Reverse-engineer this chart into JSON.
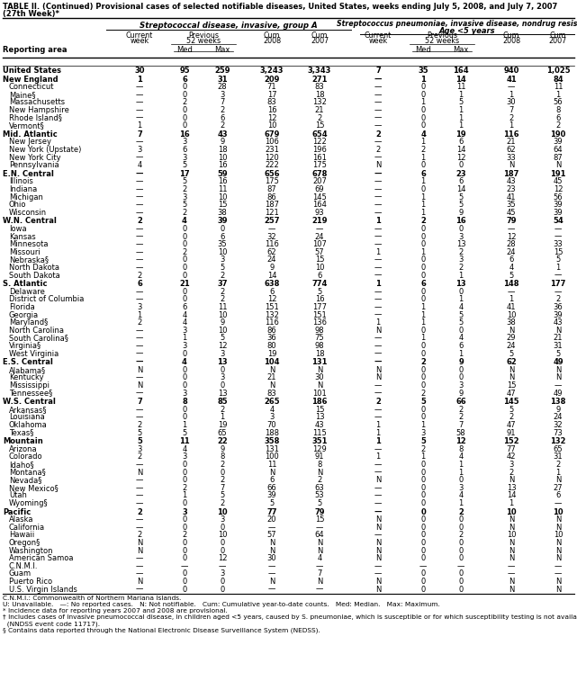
{
  "title_line1": "TABLE II. (Continued) Provisional cases of selected notifiable diseases, United States, weeks ending July 5, 2008, and July 7, 2007",
  "title_line2": "(27th Week)*",
  "col_group1": "Streptococcal disease, invasive, group A",
  "col_group2": "Streptococcus pneumoniae, invasive disease, nondrug resistant†",
  "col_group2_sub": "Age <5 years",
  "rows": [
    [
      "United States",
      "30",
      "95",
      "259",
      "3,243",
      "3,343",
      "7",
      "35",
      "164",
      "940",
      "1,025"
    ],
    [
      "New England",
      "1",
      "6",
      "31",
      "209",
      "271",
      "—",
      "1",
      "14",
      "41",
      "84"
    ],
    [
      "Connecticut",
      "—",
      "0",
      "28",
      "71",
      "83",
      "—",
      "0",
      "11",
      "—",
      "11"
    ],
    [
      "Maine§",
      "—",
      "0",
      "3",
      "17",
      "18",
      "—",
      "0",
      "1",
      "1",
      "1"
    ],
    [
      "Massachusetts",
      "—",
      "2",
      "7",
      "83",
      "132",
      "—",
      "1",
      "5",
      "30",
      "56"
    ],
    [
      "New Hampshire",
      "—",
      "0",
      "2",
      "16",
      "21",
      "—",
      "0",
      "1",
      "7",
      "8"
    ],
    [
      "Rhode Island§",
      "—",
      "0",
      "6",
      "12",
      "2",
      "—",
      "0",
      "1",
      "2",
      "6"
    ],
    [
      "Vermont§",
      "1",
      "0",
      "2",
      "10",
      "15",
      "—",
      "0",
      "1",
      "1",
      "2"
    ],
    [
      "Mid. Atlantic",
      "7",
      "16",
      "43",
      "679",
      "654",
      "2",
      "4",
      "19",
      "116",
      "190"
    ],
    [
      "New Jersey",
      "—",
      "3",
      "9",
      "106",
      "122",
      "—",
      "1",
      "6",
      "21",
      "39"
    ],
    [
      "New York (Upstate)",
      "3",
      "6",
      "18",
      "231",
      "196",
      "2",
      "2",
      "14",
      "62",
      "64"
    ],
    [
      "New York City",
      "—",
      "3",
      "10",
      "120",
      "161",
      "—",
      "1",
      "12",
      "33",
      "87"
    ],
    [
      "Pennsylvania",
      "4",
      "5",
      "16",
      "222",
      "175",
      "N",
      "0",
      "0",
      "N",
      "N"
    ],
    [
      "E.N. Central",
      "—",
      "17",
      "59",
      "656",
      "678",
      "—",
      "6",
      "23",
      "187",
      "191"
    ],
    [
      "Illinois",
      "—",
      "5",
      "16",
      "175",
      "207",
      "—",
      "1",
      "6",
      "43",
      "45"
    ],
    [
      "Indiana",
      "—",
      "2",
      "11",
      "87",
      "69",
      "—",
      "0",
      "14",
      "23",
      "12"
    ],
    [
      "Michigan",
      "—",
      "3",
      "10",
      "86",
      "145",
      "—",
      "1",
      "5",
      "41",
      "56"
    ],
    [
      "Ohio",
      "—",
      "5",
      "15",
      "187",
      "164",
      "—",
      "1",
      "5",
      "35",
      "39"
    ],
    [
      "Wisconsin",
      "—",
      "2",
      "38",
      "121",
      "93",
      "—",
      "1",
      "9",
      "45",
      "39"
    ],
    [
      "W.N. Central",
      "2",
      "4",
      "39",
      "257",
      "219",
      "1",
      "2",
      "16",
      "79",
      "54"
    ],
    [
      "Iowa",
      "—",
      "0",
      "0",
      "—",
      "—",
      "—",
      "0",
      "0",
      "—",
      "—"
    ],
    [
      "Kansas",
      "—",
      "0",
      "6",
      "32",
      "24",
      "—",
      "0",
      "3",
      "12",
      "—"
    ],
    [
      "Minnesota",
      "—",
      "0",
      "35",
      "116",
      "107",
      "—",
      "0",
      "13",
      "28",
      "33"
    ],
    [
      "Missouri",
      "—",
      "2",
      "10",
      "62",
      "57",
      "1",
      "1",
      "2",
      "24",
      "15"
    ],
    [
      "Nebraska§",
      "—",
      "0",
      "3",
      "24",
      "15",
      "—",
      "0",
      "3",
      "6",
      "5"
    ],
    [
      "North Dakota",
      "—",
      "0",
      "5",
      "9",
      "10",
      "—",
      "0",
      "2",
      "4",
      "1"
    ],
    [
      "South Dakota",
      "2",
      "0",
      "2",
      "14",
      "6",
      "—",
      "0",
      "1",
      "5",
      "—"
    ],
    [
      "S. Atlantic",
      "6",
      "21",
      "37",
      "638",
      "774",
      "1",
      "6",
      "13",
      "148",
      "177"
    ],
    [
      "Delaware",
      "—",
      "0",
      "2",
      "6",
      "5",
      "—",
      "0",
      "0",
      "—",
      "—"
    ],
    [
      "District of Columbia",
      "—",
      "0",
      "2",
      "12",
      "16",
      "—",
      "0",
      "1",
      "1",
      "2"
    ],
    [
      "Florida",
      "3",
      "6",
      "11",
      "151",
      "177",
      "—",
      "1",
      "4",
      "41",
      "36"
    ],
    [
      "Georgia",
      "1",
      "4",
      "10",
      "132",
      "151",
      "—",
      "1",
      "5",
      "10",
      "39"
    ],
    [
      "Maryland§",
      "2",
      "4",
      "9",
      "116",
      "136",
      "1",
      "1",
      "5",
      "38",
      "43"
    ],
    [
      "North Carolina",
      "—",
      "3",
      "10",
      "86",
      "98",
      "N",
      "0",
      "0",
      "N",
      "N"
    ],
    [
      "South Carolina§",
      "—",
      "1",
      "5",
      "36",
      "75",
      "—",
      "1",
      "4",
      "29",
      "21"
    ],
    [
      "Virginia§",
      "—",
      "3",
      "12",
      "80",
      "98",
      "—",
      "0",
      "6",
      "24",
      "31"
    ],
    [
      "West Virginia",
      "—",
      "0",
      "3",
      "19",
      "18",
      "—",
      "0",
      "1",
      "5",
      "5"
    ],
    [
      "E.S. Central",
      "—",
      "4",
      "13",
      "104",
      "131",
      "—",
      "2",
      "9",
      "62",
      "49"
    ],
    [
      "Alabama§",
      "N",
      "0",
      "0",
      "N",
      "N",
      "N",
      "0",
      "0",
      "N",
      "N"
    ],
    [
      "Kentucky",
      "—",
      "0",
      "3",
      "21",
      "30",
      "N",
      "0",
      "0",
      "N",
      "N"
    ],
    [
      "Mississippi",
      "N",
      "0",
      "0",
      "N",
      "N",
      "—",
      "0",
      "3",
      "15",
      "—"
    ],
    [
      "Tennessee§",
      "—",
      "3",
      "13",
      "83",
      "101",
      "—",
      "2",
      "9",
      "47",
      "49"
    ],
    [
      "W.S. Central",
      "7",
      "8",
      "85",
      "265",
      "186",
      "2",
      "5",
      "66",
      "145",
      "138"
    ],
    [
      "Arkansas§",
      "—",
      "0",
      "2",
      "4",
      "15",
      "—",
      "0",
      "2",
      "5",
      "9"
    ],
    [
      "Louisiana",
      "—",
      "0",
      "1",
      "3",
      "13",
      "—",
      "0",
      "2",
      "2",
      "24"
    ],
    [
      "Oklahoma",
      "2",
      "1",
      "19",
      "70",
      "43",
      "1",
      "1",
      "7",
      "47",
      "32"
    ],
    [
      "Texas§",
      "5",
      "5",
      "65",
      "188",
      "115",
      "1",
      "3",
      "58",
      "91",
      "73"
    ],
    [
      "Mountain",
      "5",
      "11",
      "22",
      "358",
      "351",
      "1",
      "5",
      "12",
      "152",
      "132"
    ],
    [
      "Arizona",
      "3",
      "4",
      "9",
      "131",
      "129",
      "—",
      "2",
      "8",
      "77",
      "65"
    ],
    [
      "Colorado",
      "2",
      "3",
      "8",
      "100",
      "91",
      "1",
      "1",
      "4",
      "42",
      "31"
    ],
    [
      "Idaho§",
      "—",
      "0",
      "2",
      "11",
      "8",
      "—",
      "0",
      "1",
      "3",
      "2"
    ],
    [
      "Montana§",
      "N",
      "0",
      "0",
      "N",
      "N",
      "—",
      "0",
      "1",
      "2",
      "1"
    ],
    [
      "Nevada§",
      "—",
      "0",
      "2",
      "6",
      "2",
      "N",
      "0",
      "0",
      "N",
      "N"
    ],
    [
      "New Mexico§",
      "—",
      "2",
      "7",
      "66",
      "63",
      "—",
      "0",
      "3",
      "13",
      "27"
    ],
    [
      "Utah",
      "—",
      "1",
      "5",
      "39",
      "53",
      "—",
      "0",
      "4",
      "14",
      "6"
    ],
    [
      "Wyoming§",
      "—",
      "0",
      "2",
      "5",
      "5",
      "—",
      "0",
      "1",
      "1",
      "—"
    ],
    [
      "Pacific",
      "2",
      "3",
      "10",
      "77",
      "79",
      "—",
      "0",
      "2",
      "10",
      "10"
    ],
    [
      "Alaska",
      "—",
      "0",
      "3",
      "20",
      "15",
      "N",
      "0",
      "0",
      "N",
      "N"
    ],
    [
      "California",
      "—",
      "0",
      "0",
      "—",
      "—",
      "N",
      "0",
      "0",
      "N",
      "N"
    ],
    [
      "Hawaii",
      "2",
      "2",
      "10",
      "57",
      "64",
      "—",
      "0",
      "2",
      "10",
      "10"
    ],
    [
      "Oregon§",
      "N",
      "0",
      "0",
      "N",
      "N",
      "N",
      "0",
      "0",
      "N",
      "N"
    ],
    [
      "Washington",
      "N",
      "0",
      "0",
      "N",
      "N",
      "N",
      "0",
      "0",
      "N",
      "N"
    ],
    [
      "American Samoa",
      "—",
      "0",
      "12",
      "30",
      "4",
      "N",
      "0",
      "0",
      "N",
      "N"
    ],
    [
      "C.N.M.I.",
      "—",
      "—",
      "—",
      "—",
      "—",
      "—",
      "—",
      "—",
      "—",
      "—"
    ],
    [
      "Guam",
      "—",
      "0",
      "3",
      "—",
      "7",
      "—",
      "0",
      "0",
      "—",
      "—"
    ],
    [
      "Puerto Rico",
      "N",
      "0",
      "0",
      "N",
      "N",
      "N",
      "0",
      "0",
      "N",
      "N"
    ],
    [
      "U.S. Virgin Islands",
      "—",
      "0",
      "0",
      "—",
      "—",
      "N",
      "0",
      "0",
      "N",
      "N"
    ]
  ],
  "bold_rows": [
    0,
    1,
    8,
    13,
    19,
    27,
    37,
    42,
    47,
    56
  ],
  "footnotes": [
    "C.N.M.I.: Commonwealth of Northern Mariana Islands.",
    "U: Unavailable.   —: No reported cases.   N: Not notifiable.   Cum: Cumulative year-to-date counts.   Med: Median.   Max: Maximum.",
    "* Incidence data for reporting years 2007 and 2008 are provisional.",
    "† Includes cases of invasive pneumococcal disease, in children aged <5 years, caused by S. pneumoniae, which is susceptible or for which susceptibility testing is not available",
    "  (NNDSS event code 11717).",
    "§ Contains data reported through the National Electronic Disease Surveillance System (NEDSS)."
  ]
}
